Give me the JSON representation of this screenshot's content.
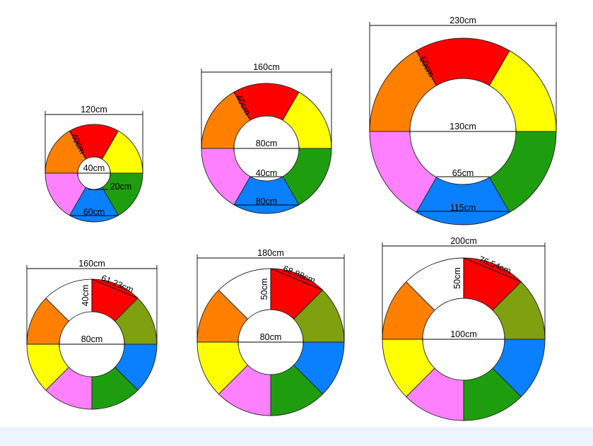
{
  "colors": {
    "red": "#ff0000",
    "orange": "#ff8000",
    "yellow": "#ffff00",
    "green": "#1e9e0f",
    "olive": "#7fa00f",
    "blue": "#0a80ff",
    "pink": "#ff80ff",
    "white": "#ffffff",
    "background": "#ffffff",
    "footer": "#eef4fd"
  },
  "rings": [
    {
      "id": "ring-1",
      "segments": [
        "red",
        "yellow",
        "green",
        "blue",
        "pink",
        "orange"
      ],
      "labels": {
        "outer_diameter": "120cm",
        "ring_width": "40cm",
        "inner_diameter": "40cm",
        "small_gap": "20cm",
        "bottom_chord": "60cm"
      }
    },
    {
      "id": "ring-2",
      "segments": [
        "red",
        "yellow",
        "green",
        "blue",
        "pink",
        "orange"
      ],
      "labels": {
        "outer_diameter": "160cm",
        "ring_width": "40cm",
        "inner_diameter": "80cm",
        "inner_chord": "40cm",
        "bottom_chord": "80cm"
      }
    },
    {
      "id": "ring-3",
      "segments": [
        "red",
        "yellow",
        "green",
        "blue",
        "pink",
        "orange"
      ],
      "labels": {
        "outer_diameter": "230cm",
        "ring_width": "50cm",
        "inner_diameter": "130cm",
        "inner_chord": "65cm",
        "bottom_chord": "115cm"
      }
    },
    {
      "id": "ring-4",
      "segments": [
        "red",
        "olive",
        "blue",
        "green",
        "pink",
        "yellow",
        "orange",
        "white"
      ],
      "labels": {
        "outer_diameter": "160cm",
        "ring_width": "40cm",
        "inner_diameter": "80cm",
        "top_chord": "61.23cm"
      }
    },
    {
      "id": "ring-5",
      "segments": [
        "red",
        "olive",
        "blue",
        "green",
        "pink",
        "yellow",
        "orange",
        "white"
      ],
      "labels": {
        "outer_diameter": "180cm",
        "ring_width": "50cm",
        "inner_diameter": "80cm",
        "top_chord": "68.88cm"
      }
    },
    {
      "id": "ring-6",
      "segments": [
        "red",
        "olive",
        "blue",
        "green",
        "pink",
        "yellow",
        "orange",
        "white"
      ],
      "labels": {
        "outer_diameter": "200cm",
        "ring_width": "50cm",
        "inner_diameter": "100cm",
        "top_chord": "76.54cm"
      }
    }
  ]
}
